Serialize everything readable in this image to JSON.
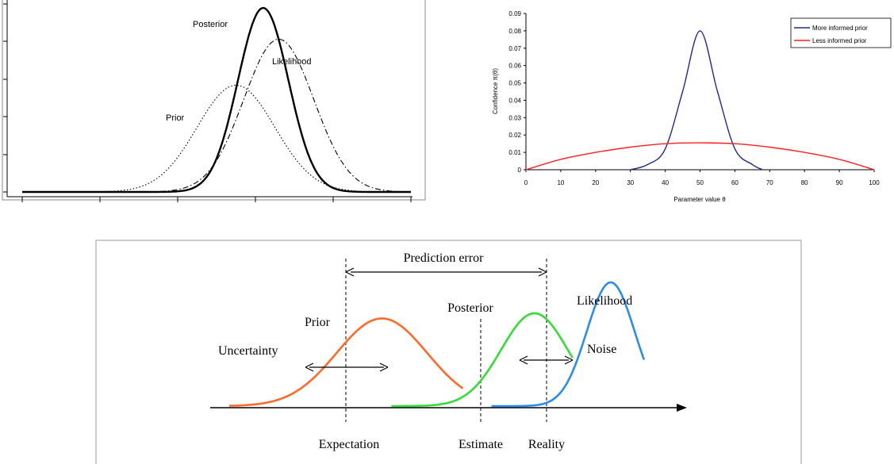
{
  "chart_data": [
    {
      "type": "line",
      "title": "",
      "annotations": [
        {
          "text": "Posterior"
        },
        {
          "text": "Likelihood"
        },
        {
          "text": "Prior"
        }
      ],
      "series": [
        {
          "name": "Prior",
          "style": "dotted",
          "mean": 0.55,
          "sd": 0.1,
          "peak": 0.58
        },
        {
          "name": "Likelihood",
          "style": "dash-dot",
          "mean": 0.66,
          "sd": 0.09,
          "peak": 0.83
        },
        {
          "name": "Posterior",
          "style": "solid-thick",
          "mean": 0.62,
          "sd": 0.065,
          "peak": 1.0
        }
      ]
    },
    {
      "type": "line",
      "xlabel": "Parameter value θ",
      "ylabel": "Confidence  π(θ)",
      "xlim": [
        0,
        100
      ],
      "ylim": [
        0,
        0.09
      ],
      "xticks": [
        "0",
        "10",
        "20",
        "30",
        "40",
        "50",
        "60",
        "70",
        "80",
        "90",
        "100"
      ],
      "yticks": [
        "0",
        "0.01",
        "0.02",
        "0.03",
        "0.04",
        "0.05",
        "0.06",
        "0.07",
        "0.08",
        "0.09"
      ],
      "legend_position": "top-right",
      "series": [
        {
          "name": "More informed prior",
          "color": "#1f2a8a",
          "x": [
            30,
            35,
            40,
            45,
            50,
            55,
            60,
            65,
            68
          ],
          "y": [
            0,
            0.003,
            0.012,
            0.045,
            0.08,
            0.045,
            0.012,
            0.003,
            0
          ]
        },
        {
          "name": "Less informed prior",
          "color": "#ff2020",
          "x": [
            0,
            10,
            20,
            30,
            40,
            50,
            60,
            70,
            80,
            90,
            100
          ],
          "y": [
            0,
            0.006,
            0.01,
            0.013,
            0.015,
            0.0155,
            0.015,
            0.013,
            0.01,
            0.006,
            0
          ]
        }
      ]
    },
    {
      "type": "line",
      "labels": {
        "prediction_error": "Prediction error",
        "prior": "Prior",
        "uncertainty": "Uncertainty",
        "posterior": "Posterior",
        "likelihood": "Likelihood",
        "noise": "Noise",
        "expectation": "Expectation",
        "estimate": "Estimate",
        "reality": "Reality"
      },
      "series": [
        {
          "name": "Prior",
          "color": "#ff6a2a",
          "mean": 0.36,
          "sd": 0.095,
          "peak": 0.85
        },
        {
          "name": "Posterior",
          "color": "#33dd33",
          "mean": 0.68,
          "sd": 0.07,
          "peak": 0.9
        },
        {
          "name": "Likelihood",
          "color": "#2a8cf0",
          "mean": 0.84,
          "sd": 0.05,
          "peak": 1.2
        }
      ]
    }
  ]
}
